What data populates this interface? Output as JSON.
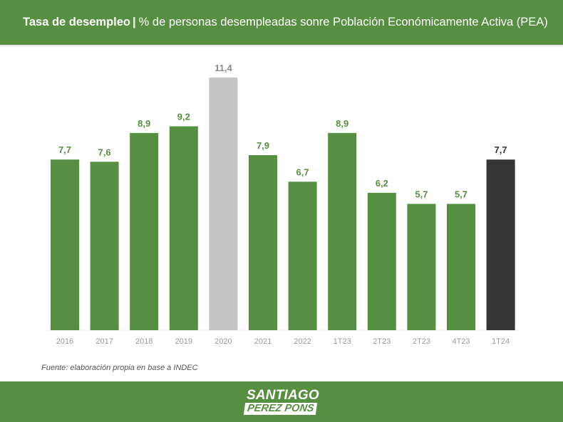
{
  "header": {
    "title_bold": "Tasa de desempleo",
    "separator": "|",
    "title_rest": "% de personas desempleadas sonre Población Económicamente Activa (PEA)"
  },
  "footer": {
    "source": "Fuente: elaboración propia en base a INDEC",
    "logo_line1": "SANTIAGO",
    "logo_line2": "PEREZ PONS"
  },
  "colors": {
    "brand_green": "#568f41",
    "highlight_gray": "#c4c4c4",
    "current_dark": "#353535",
    "axis_label": "#999999"
  },
  "chart_data": {
    "type": "bar",
    "title": "Tasa de desempleo | % de personas desempleadas sonre Población Económicamente Activa (PEA)",
    "xlabel": "",
    "ylabel": "",
    "ylim": [
      0,
      11.4
    ],
    "grid": false,
    "legend": "none",
    "categories": [
      "2016",
      "2017",
      "2018",
      "2019",
      "2020",
      "2021",
      "2022",
      "1T23",
      "2T23",
      "2T23",
      "4T23",
      "1T24"
    ],
    "values": [
      7.7,
      7.6,
      8.9,
      9.2,
      11.4,
      7.9,
      6.7,
      8.9,
      6.2,
      5.7,
      5.7,
      7.7
    ],
    "value_labels": [
      "7,7",
      "7,6",
      "8,9",
      "9,2",
      "11,4",
      "7,9",
      "6,7",
      "8,9",
      "6,2",
      "5,7",
      "5,7",
      "7,7"
    ],
    "bar_colors": [
      "#568f41",
      "#568f41",
      "#568f41",
      "#568f41",
      "#c4c4c4",
      "#568f41",
      "#568f41",
      "#568f41",
      "#568f41",
      "#568f41",
      "#568f41",
      "#353535"
    ],
    "label_colors": [
      "#568f41",
      "#568f41",
      "#568f41",
      "#568f41",
      "#8a8a8a",
      "#568f41",
      "#568f41",
      "#568f41",
      "#568f41",
      "#568f41",
      "#568f41",
      "#353535"
    ]
  }
}
